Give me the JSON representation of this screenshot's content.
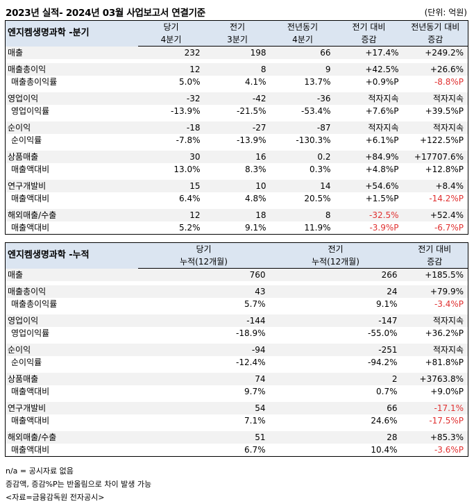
{
  "title": "2023년 실적- 2024년 03월 사업보고서 연결기준",
  "unit": "(단위: 억원)",
  "quarterly": {
    "company": "엔지켐생명과학 -분기",
    "headers": [
      {
        "line1": "당기",
        "line2": "4분기"
      },
      {
        "line1": "전기",
        "line2": "3분기"
      },
      {
        "line1": "전년동기",
        "line2": "4분기"
      },
      {
        "line1": "전기 대비",
        "line2": "증감"
      },
      {
        "line1": "전년동기 대비",
        "line2": "증감"
      }
    ],
    "rows": [
      {
        "label": "매출",
        "sub": false,
        "cells": [
          "232",
          "198",
          "66",
          "+17.4%",
          "+249.2%"
        ],
        "red": [
          false,
          false,
          false,
          false,
          false
        ]
      },
      {
        "label": "매출총이익",
        "sub": false,
        "cells": [
          "12",
          "8",
          "9",
          "+42.5%",
          "+26.6%"
        ],
        "red": [
          false,
          false,
          false,
          false,
          false
        ]
      },
      {
        "label": "매출총이익률",
        "sub": true,
        "cells": [
          "5.0%",
          "4.1%",
          "13.7%",
          "+0.9%P",
          "-8.8%P"
        ],
        "red": [
          false,
          false,
          false,
          false,
          true
        ]
      },
      {
        "label": "영업이익",
        "sub": false,
        "cells": [
          "-32",
          "-42",
          "-36",
          "적자지속",
          "적자지속"
        ],
        "red": [
          false,
          false,
          false,
          false,
          false
        ]
      },
      {
        "label": "영업이익률",
        "sub": true,
        "cells": [
          "-13.9%",
          "-21.5%",
          "-53.4%",
          "+7.6%P",
          "+39.5%P"
        ],
        "red": [
          false,
          false,
          false,
          false,
          false
        ]
      },
      {
        "label": "순이익",
        "sub": false,
        "cells": [
          "-18",
          "-27",
          "-87",
          "적자지속",
          "적자지속"
        ],
        "red": [
          false,
          false,
          false,
          false,
          false
        ]
      },
      {
        "label": "순이익률",
        "sub": true,
        "cells": [
          "-7.8%",
          "-13.9%",
          "-130.3%",
          "+6.1%P",
          "+122.5%P"
        ],
        "red": [
          false,
          false,
          false,
          false,
          false
        ]
      },
      {
        "label": "상품매출",
        "sub": false,
        "cells": [
          "30",
          "16",
          "0.2",
          "+84.9%",
          "+17707.6%"
        ],
        "red": [
          false,
          false,
          false,
          false,
          false
        ]
      },
      {
        "label": "매출액대비",
        "sub": true,
        "cells": [
          "13.0%",
          "8.3%",
          "0.3%",
          "+4.8%P",
          "+12.8%P"
        ],
        "red": [
          false,
          false,
          false,
          false,
          false
        ]
      },
      {
        "label": "연구개발비",
        "sub": false,
        "cells": [
          "15",
          "10",
          "14",
          "+54.6%",
          "+8.4%"
        ],
        "red": [
          false,
          false,
          false,
          false,
          false
        ]
      },
      {
        "label": "매출액대비",
        "sub": true,
        "cells": [
          "6.4%",
          "4.8%",
          "20.5%",
          "+1.5%P",
          "-14.2%P"
        ],
        "red": [
          false,
          false,
          false,
          false,
          true
        ]
      },
      {
        "label": "해외매출/수출",
        "sub": false,
        "cells": [
          "12",
          "18",
          "8",
          "-32.5%",
          "+52.4%"
        ],
        "red": [
          false,
          false,
          false,
          true,
          false
        ]
      },
      {
        "label": "매출액대비",
        "sub": true,
        "cells": [
          "5.2%",
          "9.1%",
          "11.9%",
          "-3.9%P",
          "-6.7%P"
        ],
        "red": [
          false,
          false,
          false,
          true,
          true
        ]
      }
    ]
  },
  "cumulative": {
    "company": "엔지켐생명과학 -누적",
    "headers": [
      {
        "line1": "당기",
        "line2": "누적(12개월)"
      },
      {
        "line1": "전기",
        "line2": "누적(12개월)"
      },
      {
        "line1": "전기 대비",
        "line2": "증감"
      }
    ],
    "rows": [
      {
        "label": "매출",
        "sub": false,
        "cells": [
          "760",
          "266",
          "+185.5%"
        ],
        "red": [
          false,
          false,
          false
        ]
      },
      {
        "label": "매출총이익",
        "sub": false,
        "cells": [
          "43",
          "24",
          "+79.9%"
        ],
        "red": [
          false,
          false,
          false
        ]
      },
      {
        "label": "매출총이익률",
        "sub": true,
        "cells": [
          "5.7%",
          "9.1%",
          "-3.4%P"
        ],
        "red": [
          false,
          false,
          true
        ]
      },
      {
        "label": "영업이익",
        "sub": false,
        "cells": [
          "-144",
          "-147",
          "적자지속"
        ],
        "red": [
          false,
          false,
          false
        ]
      },
      {
        "label": "영업이익률",
        "sub": true,
        "cells": [
          "-18.9%",
          "-55.0%",
          "+36.2%P"
        ],
        "red": [
          false,
          false,
          false
        ]
      },
      {
        "label": "순이익",
        "sub": false,
        "cells": [
          "-94",
          "-251",
          "적자지속"
        ],
        "red": [
          false,
          false,
          false
        ]
      },
      {
        "label": "순이익률",
        "sub": true,
        "cells": [
          "-12.4%",
          "-94.2%",
          "+81.8%P"
        ],
        "red": [
          false,
          false,
          false
        ]
      },
      {
        "label": "상품매출",
        "sub": false,
        "cells": [
          "74",
          "2",
          "+3763.8%"
        ],
        "red": [
          false,
          false,
          false
        ]
      },
      {
        "label": "매출액대비",
        "sub": true,
        "cells": [
          "9.7%",
          "0.7%",
          "+9.0%P"
        ],
        "red": [
          false,
          false,
          false
        ]
      },
      {
        "label": "연구개발비",
        "sub": false,
        "cells": [
          "54",
          "66",
          "-17.1%"
        ],
        "red": [
          false,
          false,
          true
        ]
      },
      {
        "label": "매출액대비",
        "sub": true,
        "cells": [
          "7.1%",
          "24.6%",
          "-17.5%P"
        ],
        "red": [
          false,
          false,
          true
        ]
      },
      {
        "label": "해외매출/수출",
        "sub": false,
        "cells": [
          "51",
          "28",
          "+85.3%"
        ],
        "red": [
          false,
          false,
          false
        ]
      },
      {
        "label": "매출액대비",
        "sub": true,
        "cells": [
          "6.7%",
          "10.4%",
          "-3.6%P"
        ],
        "red": [
          false,
          false,
          true
        ]
      }
    ]
  },
  "notes": [
    "n/a = 공시자료 없음",
    "증감액, 증감%P는 반올림으로 차이 발생 가능",
    "<자료=금융감독원 전자공시>"
  ],
  "colors": {
    "header_bg": "#dbe5f1",
    "negative_change": "#e03030",
    "row_band": "#f2f2f2"
  }
}
